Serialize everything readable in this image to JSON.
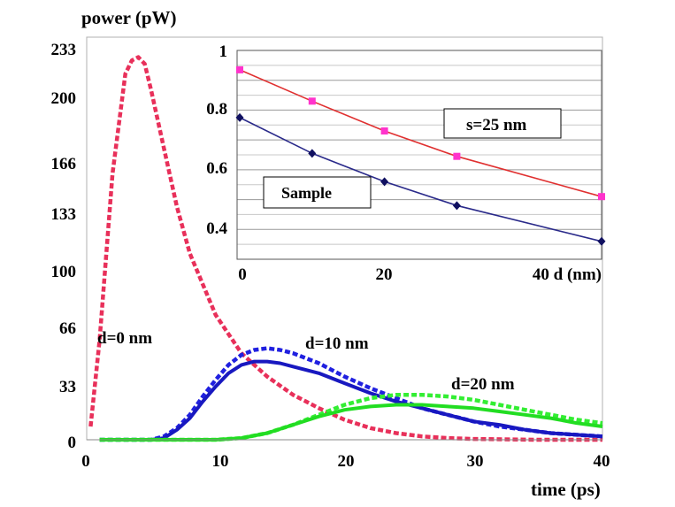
{
  "chart_data": [
    {
      "id": "main",
      "type": "line",
      "ylabel": "power (pW)",
      "xlabel": "time (ps)",
      "xlim": [
        0,
        40
      ],
      "ylim": [
        0,
        233
      ],
      "x_ticks": [
        0,
        10,
        20,
        30,
        40
      ],
      "x_tick_labels": [
        "0",
        "10",
        "20",
        "30",
        "40"
      ],
      "y_ticks": [
        0,
        33,
        66,
        100,
        133,
        166,
        200,
        233
      ],
      "y_tick_labels": [
        "0",
        "33",
        "66",
        "100",
        "133",
        "166",
        "200",
        "233"
      ],
      "series": [
        {
          "name": "d=0 nm",
          "color": "#e8305a",
          "dashed": true,
          "x": [
            0.3,
            1,
            2,
            3,
            3.5,
            4,
            4.5,
            5,
            6,
            7,
            8,
            10,
            12,
            14,
            16,
            18,
            20,
            22,
            24,
            26,
            28,
            30,
            35,
            40
          ],
          "y": [
            8,
            60,
            160,
            220,
            228,
            230,
            226,
            210,
            175,
            140,
            112,
            75,
            52,
            38,
            27,
            19,
            12,
            7,
            4,
            2,
            1,
            0.5,
            0,
            0
          ]
        },
        {
          "name": "d=10 nm (dashed)",
          "color": "#2020e0",
          "dashed": true,
          "x": [
            1,
            5,
            6,
            7,
            8,
            9,
            10,
            11,
            12,
            13,
            14,
            15,
            16,
            18,
            20,
            22,
            24,
            26,
            28,
            30,
            32,
            34,
            36,
            38,
            40
          ],
          "y": [
            0,
            0,
            2,
            7,
            15,
            26,
            36,
            45,
            51,
            54,
            55,
            54,
            52,
            46,
            38,
            31,
            25,
            19,
            15,
            11,
            8,
            6,
            4,
            3,
            2
          ]
        },
        {
          "name": "d=10 nm",
          "color": "#1818c0",
          "dashed": false,
          "x": [
            1,
            5,
            6,
            7,
            8,
            9,
            10,
            11,
            12,
            13,
            14,
            15,
            16,
            18,
            20,
            22,
            24,
            26,
            28,
            30,
            32,
            34,
            36,
            38,
            40
          ],
          "y": [
            0,
            0,
            1,
            6,
            13,
            23,
            32,
            40,
            45,
            47,
            47,
            46,
            44,
            40,
            34,
            28,
            23,
            19,
            15,
            11,
            9,
            6,
            4,
            3,
            2
          ]
        },
        {
          "name": "d=20 nm (dashed)",
          "color": "#33ee33",
          "dashed": true,
          "x": [
            1,
            10,
            12,
            14,
            16,
            18,
            20,
            22,
            24,
            26,
            28,
            30,
            32,
            34,
            36,
            38,
            40
          ],
          "y": [
            0,
            0,
            1,
            4,
            9,
            15,
            21,
            25,
            27,
            27,
            26,
            24,
            21,
            18,
            15,
            12,
            10
          ]
        },
        {
          "name": "d=20 nm",
          "color": "#22dd22",
          "dashed": false,
          "x": [
            1,
            10,
            12,
            14,
            16,
            18,
            20,
            22,
            24,
            26,
            28,
            30,
            32,
            34,
            36,
            38,
            40
          ],
          "y": [
            0,
            0,
            1,
            4,
            9,
            14,
            18,
            20,
            21,
            21,
            20,
            19,
            17,
            15,
            13,
            10,
            8
          ]
        }
      ],
      "annotations": [
        {
          "text": "d=0 nm",
          "x": 1.0,
          "y": 60
        },
        {
          "text": "d=10 nm",
          "x": 17.5,
          "y": 56
        },
        {
          "text": "d=20 nm",
          "x": 29.2,
          "y": 31
        }
      ]
    },
    {
      "id": "inset",
      "type": "line",
      "xlabel": "d (nm)",
      "xlim": [
        0,
        50
      ],
      "ylim": [
        0.3,
        1.0
      ],
      "x_tick_labels": [
        "0",
        "20",
        "40 d (nm)"
      ],
      "y_ticks": [
        0.4,
        0.6,
        0.8,
        1.0
      ],
      "y_tick_labels": [
        "0.4",
        "0.6",
        "0.8",
        "1"
      ],
      "grid": true,
      "series": [
        {
          "name": "s=25 nm",
          "color": "#e03030",
          "marker_color": "#ff33cc",
          "marker": "square",
          "x": [
            0,
            10,
            20,
            30,
            50
          ],
          "y": [
            0.935,
            0.83,
            0.73,
            0.645,
            0.51
          ]
        },
        {
          "name": "Sample",
          "color": "#2a2a8a",
          "marker_color": "#101060",
          "marker": "diamond",
          "x": [
            0,
            10,
            20,
            30,
            50
          ],
          "y": [
            0.775,
            0.655,
            0.56,
            0.48,
            0.36
          ]
        }
      ],
      "legend_labels": [
        "s=25 nm",
        "Sample"
      ]
    }
  ]
}
